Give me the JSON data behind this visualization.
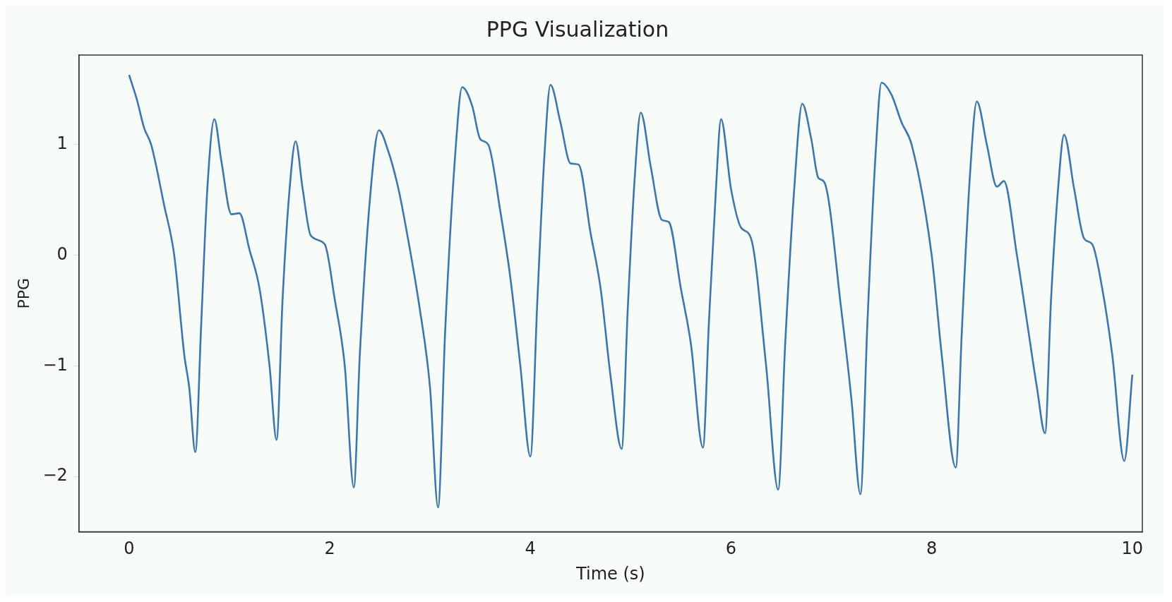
{
  "chart_data": {
    "type": "line",
    "title": "PPG Visualization",
    "xlabel": "Time (s)",
    "ylabel": "PPG",
    "xlim": [
      -0.5,
      10.1
    ],
    "ylim": [
      -2.5,
      1.81
    ],
    "xticks": [
      0,
      2,
      4,
      6,
      8,
      10
    ],
    "yticks": [
      {
        "value": -2,
        "label": "−2"
      },
      {
        "value": -1,
        "label": "−1"
      },
      0,
      1
    ],
    "grid": false,
    "legend": false,
    "marker": "none",
    "line_style": "solid",
    "series": [
      {
        "color": "#3a76b5",
        "x": [
          0,
          0.08,
          0.15,
          0.22,
          0.35,
          0.45,
          0.55,
          0.6,
          0.66,
          0.72,
          0.78,
          0.85,
          0.92,
          1.02,
          1.1,
          1.2,
          1.3,
          1.4,
          1.47,
          1.53,
          1.6,
          1.66,
          1.73,
          1.81,
          1.95,
          2.05,
          2.15,
          2.24,
          2.3,
          2.4,
          2.49,
          2.58,
          2.68,
          2.75,
          2.9,
          3.0,
          3.08,
          3.15,
          3.25,
          3.32,
          3.42,
          3.5,
          3.58,
          3.7,
          3.8,
          3.9,
          4.0,
          4.07,
          4.14,
          4.2,
          4.3,
          4.4,
          4.48,
          4.6,
          4.7,
          4.8,
          4.91,
          4.97,
          5.04,
          5.1,
          5.2,
          5.31,
          5.38,
          5.5,
          5.6,
          5.72,
          5.78,
          5.85,
          5.9,
          6.0,
          6.1,
          6.2,
          6.35,
          6.47,
          6.54,
          6.63,
          6.71,
          6.8,
          6.87,
          6.93,
          7.1,
          7.2,
          7.29,
          7.36,
          7.44,
          7.5,
          7.6,
          7.7,
          7.8,
          8.0,
          8.1,
          8.24,
          8.3,
          8.38,
          8.45,
          8.55,
          8.65,
          8.72,
          8.85,
          8.95,
          9.05,
          9.13,
          9.19,
          9.26,
          9.32,
          9.42,
          9.52,
          9.6,
          9.7,
          9.8,
          9.92,
          10.0
        ],
        "values": [
          1.63,
          1.4,
          1.15,
          1.0,
          0.45,
          0.0,
          -0.9,
          -1.2,
          -1.78,
          -0.6,
          0.6,
          1.23,
          0.85,
          0.37,
          0.38,
          0.05,
          -0.3,
          -1.0,
          -1.67,
          -0.4,
          0.6,
          1.03,
          0.6,
          0.18,
          0.1,
          -0.4,
          -1.0,
          -2.1,
          -0.9,
          0.5,
          1.13,
          0.95,
          0.62,
          0.3,
          -0.5,
          -1.2,
          -2.28,
          -0.7,
          0.9,
          1.52,
          1.35,
          1.05,
          1.0,
          0.4,
          -0.2,
          -1.0,
          -1.82,
          -0.4,
          0.9,
          1.54,
          1.2,
          0.83,
          0.82,
          0.2,
          -0.3,
          -1.1,
          -1.75,
          -0.5,
          0.7,
          1.29,
          0.8,
          0.32,
          0.3,
          -0.3,
          -0.8,
          -1.74,
          -0.6,
          0.6,
          1.23,
          0.6,
          0.25,
          0.15,
          -1.0,
          -2.12,
          -0.8,
          0.6,
          1.37,
          1.05,
          0.7,
          0.66,
          -0.5,
          -1.3,
          -2.16,
          -0.6,
          0.9,
          1.56,
          1.45,
          1.2,
          1.0,
          0.0,
          -0.9,
          -1.92,
          -0.7,
          0.7,
          1.39,
          1.0,
          0.62,
          0.67,
          0.0,
          -0.6,
          -1.2,
          -1.61,
          -0.4,
          0.6,
          1.09,
          0.6,
          0.15,
          0.1,
          -0.3,
          -0.9,
          -1.86,
          -1.08
        ]
      }
    ]
  }
}
